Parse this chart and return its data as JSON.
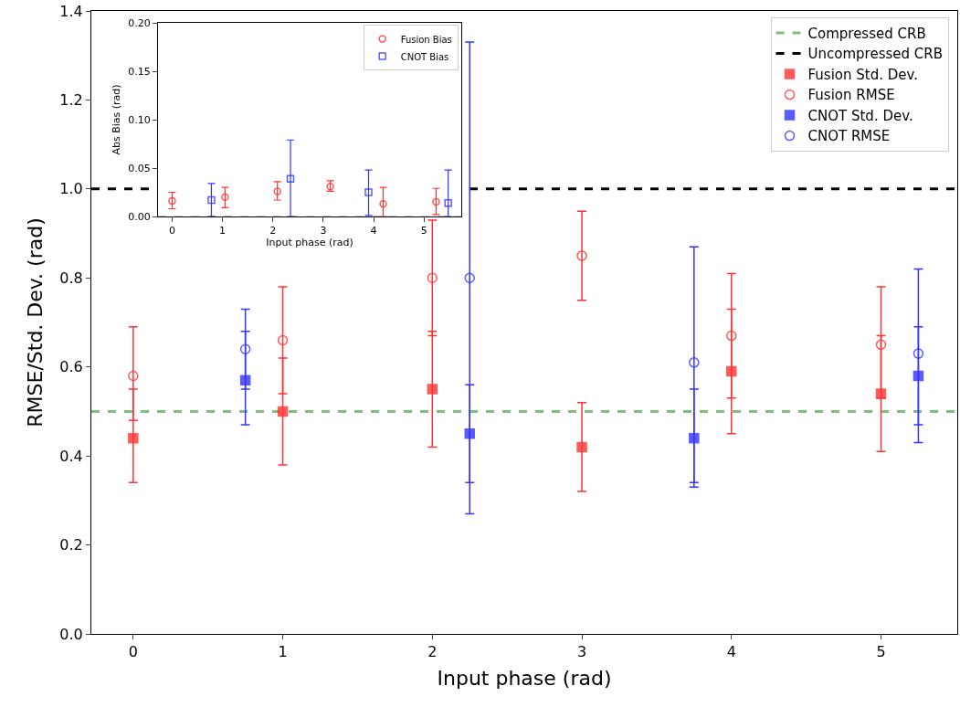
{
  "chart_data": [
    {
      "type": "scatter",
      "xlabel": "Input phase (rad)",
      "ylabel": "RMSE/Std. Dev. (rad)",
      "xlim": [
        -0.28,
        5.51
      ],
      "ylim": [
        0,
        1.4
      ],
      "xticks": [
        0,
        1,
        2,
        3,
        4,
        5
      ],
      "yticks": [
        {
          "value": 0,
          "label": "0.0"
        },
        {
          "value": 0.2,
          "label": "0.2"
        },
        {
          "value": 0.4,
          "label": "0.4"
        },
        {
          "value": 0.6,
          "label": "0.6"
        },
        {
          "value": 0.8,
          "label": "0.8"
        },
        {
          "value": 1.0,
          "label": "1.0"
        },
        {
          "value": 1.2,
          "label": "1.2"
        },
        {
          "value": 1.4,
          "label": "1.4"
        }
      ],
      "legend": "top right",
      "ref_lines": [
        {
          "axis": "y",
          "value": 0.5,
          "label": "Compressed CRB",
          "color": "#7fbf7f",
          "line_style": "dashed"
        },
        {
          "axis": "y",
          "value": 1.0,
          "label": "Uncompressed CRB",
          "color": "#000000",
          "line_style": "dashed"
        }
      ],
      "series": [
        {
          "name": "Fusion Std. Dev.",
          "color": "#ff3333",
          "marker": "square",
          "x": [
            0,
            1,
            2,
            3,
            4,
            5
          ],
          "values": [
            0.44,
            0.5,
            0.55,
            0.42,
            0.59,
            0.54
          ],
          "errors": [
            [
              0.48,
              0.55
            ],
            [
              0.54,
              0.62
            ],
            [
              0.67,
              0.68
            ],
            [
              0.32,
              0.52
            ],
            [
              0.53,
              0.73
            ],
            [
              0.53,
              0.67
            ]
          ]
        },
        {
          "name": "Fusion RMSE",
          "color": "#ff3333",
          "marker": "circle",
          "x": [
            0,
            1,
            2,
            3,
            4,
            5
          ],
          "values": [
            0.58,
            0.66,
            0.8,
            0.85,
            0.67,
            0.65
          ],
          "errors": [
            [
              0.34,
              0.69
            ],
            [
              0.38,
              0.78
            ],
            [
              0.42,
              0.93
            ],
            [
              0.75,
              0.95
            ],
            [
              0.45,
              0.81
            ],
            [
              0.41,
              0.78
            ]
          ]
        },
        {
          "name": "CNOT Std. Dev.",
          "color": "#3333ff",
          "marker": "square",
          "x": [
            0.75,
            2.25,
            3.75,
            5.25
          ],
          "values": [
            0.57,
            0.45,
            0.44,
            0.58
          ],
          "errors": [
            [
              0.55,
              0.68
            ],
            [
              0.34,
              0.56
            ],
            [
              0.34,
              0.55
            ],
            [
              0.47,
              0.69
            ]
          ]
        },
        {
          "name": "CNOT RMSE",
          "color": "#3333ff",
          "marker": "circle",
          "x": [
            0.75,
            2.25,
            3.75,
            5.25
          ],
          "values": [
            0.64,
            0.8,
            0.61,
            0.63
          ],
          "errors": [
            [
              0.47,
              0.73
            ],
            [
              0.27,
              1.33
            ],
            [
              0.33,
              0.87
            ],
            [
              0.43,
              0.82
            ]
          ]
        }
      ]
    },
    {
      "type": "scatter",
      "xlabel": "Input phase (rad)",
      "ylabel": "Abs Bias (rad)",
      "xlim": [
        -0.28,
        5.74
      ],
      "ylim": [
        0,
        0.2
      ],
      "xticks": [
        0,
        1,
        2,
        3,
        4,
        5
      ],
      "yticks": [
        {
          "value": 0,
          "label": "0.00"
        },
        {
          "value": 0.05,
          "label": "0.05"
        },
        {
          "value": 0.1,
          "label": "0.10"
        },
        {
          "value": 0.15,
          "label": "0.15"
        },
        {
          "value": 0.2,
          "label": "0.20"
        }
      ],
      "legend": "top right",
      "ref_lines": [
        {
          "axis": "y",
          "value": 0,
          "color": "#999999",
          "line_style": "dashed"
        }
      ],
      "series": [
        {
          "name": "Fusion Bias",
          "color": "#ff3333",
          "marker": "circle",
          "x": [
            0,
            1.05,
            2.09,
            3.14,
            4.19,
            5.24
          ],
          "values": [
            0.016,
            0.02,
            0.026,
            0.031,
            0.013,
            0.015
          ],
          "errors": [
            [
              0.008,
              0.025
            ],
            [
              0.009,
              0.03
            ],
            [
              0.017,
              0.036
            ],
            [
              0.026,
              0.037
            ],
            [
              0,
              0.03
            ],
            [
              0.002,
              0.029
            ]
          ]
        },
        {
          "name": "CNOT Bias",
          "color": "#3333ff",
          "marker": "square",
          "x": [
            0.78,
            2.35,
            3.9,
            5.48
          ],
          "values": [
            0.017,
            0.039,
            0.025,
            0.014
          ],
          "errors": [
            [
              0,
              0.034
            ],
            [
              0,
              0.079
            ],
            [
              0.001,
              0.048
            ],
            [
              0,
              0.048
            ]
          ]
        }
      ]
    }
  ]
}
